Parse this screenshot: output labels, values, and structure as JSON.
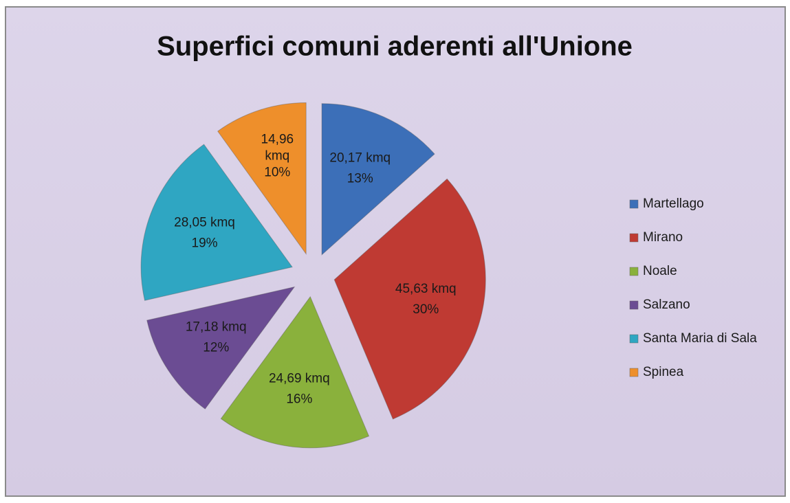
{
  "chart_data": {
    "type": "pie",
    "title": "Superfici comuni aderenti all'Unione",
    "categories": [
      "Martellago",
      "Mirano",
      "Noale",
      "Salzano",
      "Santa Maria di Sala",
      "Spinea"
    ],
    "values": [
      20.17,
      45.63,
      24.69,
      17.18,
      28.05,
      14.96
    ],
    "value_labels": [
      "20,17 kmq",
      "45,63 kmq",
      "24,69 kmq",
      "17,18 kmq",
      "28,05 kmq",
      "14,96 kmq"
    ],
    "percent_labels": [
      "13%",
      "30%",
      "16%",
      "12%",
      "19%",
      "10%"
    ],
    "colors": [
      "#3c6fb8",
      "#bf3a33",
      "#8ab13c",
      "#6b4c93",
      "#2fa6c2",
      "#ee8f2b"
    ],
    "legend": "right"
  }
}
